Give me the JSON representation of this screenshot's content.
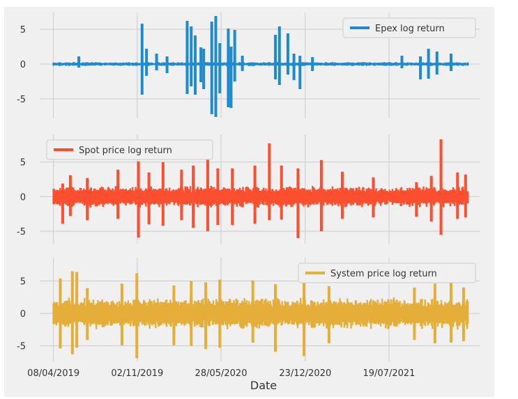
{
  "chart_data": {
    "type": "line",
    "shared_x": {
      "xlabel": "Date",
      "tick_labels": [
        "08/04/2019",
        "02/11/2019",
        "28/05/2020",
        "23/12/2020",
        "19/07/2021"
      ],
      "tick_dates": [
        "2019-04-08",
        "2019-11-02",
        "2020-05-28",
        "2020-12-23",
        "2021-07-19"
      ],
      "xlim": [
        "2019-03-05",
        "2022-03-01"
      ],
      "data_range": [
        "2019-04-08",
        "2022-01-31"
      ]
    },
    "grid": true,
    "panels": [
      {
        "series_name": "Epex log return",
        "color": "#1f8bcf",
        "legend_position": "upper right",
        "ylim": [
          -7.8,
          7.4
        ],
        "yticks": [
          -5,
          0,
          5
        ],
        "baseline_amplitude": 0.3,
        "spikes": [
          {
            "date": "2019-06-10",
            "low": -0.5,
            "high": 1.1
          },
          {
            "date": "2019-11-14",
            "low": -4.4,
            "high": 5.8
          },
          {
            "date": "2019-11-25",
            "low": -1.7,
            "high": 2.2
          },
          {
            "date": "2019-12-20",
            "low": -0.9,
            "high": 1.5
          },
          {
            "date": "2020-01-15",
            "low": -1.3,
            "high": 1.1
          },
          {
            "date": "2020-03-05",
            "low": -4.3,
            "high": 6.2
          },
          {
            "date": "2020-03-15",
            "low": -3.2,
            "high": 5.4
          },
          {
            "date": "2020-03-25",
            "low": -4.4,
            "high": 4.1
          },
          {
            "date": "2020-04-08",
            "low": -2.6,
            "high": 2.4
          },
          {
            "date": "2020-04-15",
            "low": -3.6,
            "high": 2.2
          },
          {
            "date": "2020-05-05",
            "low": -7.2,
            "high": 6.1
          },
          {
            "date": "2020-05-15",
            "low": -7.6,
            "high": 6.9
          },
          {
            "date": "2020-05-25",
            "low": -4.2,
            "high": 3.0
          },
          {
            "date": "2020-06-15",
            "low": -6.2,
            "high": 5.1
          },
          {
            "date": "2020-06-22",
            "low": -6.3,
            "high": 2.5
          },
          {
            "date": "2020-07-01",
            "low": -2.5,
            "high": 4.9
          },
          {
            "date": "2020-07-20",
            "low": -1.0,
            "high": 1.2
          },
          {
            "date": "2020-10-10",
            "low": -2.2,
            "high": 4.2
          },
          {
            "date": "2020-10-20",
            "low": -3.0,
            "high": 5.4
          },
          {
            "date": "2020-11-10",
            "low": -1.5,
            "high": 4.4
          },
          {
            "date": "2020-11-25",
            "low": -2.3,
            "high": 1.5
          },
          {
            "date": "2020-12-10",
            "low": -3.6,
            "high": 1.2
          },
          {
            "date": "2021-01-10",
            "low": -1.0,
            "high": 1.0
          },
          {
            "date": "2021-08-20",
            "low": -0.6,
            "high": 1.2
          },
          {
            "date": "2021-10-05",
            "low": -2.2,
            "high": 1.1
          },
          {
            "date": "2021-10-25",
            "low": -2.1,
            "high": 2.2
          },
          {
            "date": "2021-11-15",
            "low": -1.5,
            "high": 1.8
          },
          {
            "date": "2021-12-20",
            "low": -1.0,
            "high": 1.5
          }
        ]
      },
      {
        "series_name": "Spot price log return",
        "color": "#fc4f30",
        "legend_position": "upper left",
        "ylim": [
          -6.8,
          9.0
        ],
        "yticks": [
          -5,
          0,
          5
        ],
        "baseline_amplitude": 1.6,
        "spikes": [
          {
            "date": "2019-05-01",
            "low": -3.9,
            "high": 1.9
          },
          {
            "date": "2019-05-20",
            "low": -2.8,
            "high": 3.1
          },
          {
            "date": "2019-07-01",
            "low": -3.4,
            "high": 2.7
          },
          {
            "date": "2019-09-15",
            "low": -3.2,
            "high": 3.9
          },
          {
            "date": "2019-11-05",
            "low": -5.9,
            "high": 5.1
          },
          {
            "date": "2019-12-01",
            "low": -4.0,
            "high": 3.5
          },
          {
            "date": "2020-01-05",
            "low": -4.2,
            "high": 5.0
          },
          {
            "date": "2020-02-20",
            "low": -3.4,
            "high": 3.9
          },
          {
            "date": "2020-03-20",
            "low": -4.5,
            "high": 4.5
          },
          {
            "date": "2020-04-25",
            "low": -5.0,
            "high": 5.8
          },
          {
            "date": "2020-05-20",
            "low": -4.1,
            "high": 4.1
          },
          {
            "date": "2020-06-25",
            "low": -4.1,
            "high": 4.1
          },
          {
            "date": "2020-08-20",
            "low": -3.9,
            "high": 4.5
          },
          {
            "date": "2020-09-25",
            "low": -3.4,
            "high": 7.7
          },
          {
            "date": "2020-10-25",
            "low": -3.3,
            "high": 4.5
          },
          {
            "date": "2020-12-05",
            "low": -6.0,
            "high": 4.1
          },
          {
            "date": "2021-02-01",
            "low": -5.0,
            "high": 5.3
          },
          {
            "date": "2021-03-25",
            "low": -3.2,
            "high": 3.6
          },
          {
            "date": "2021-06-10",
            "low": -3.0,
            "high": 2.8
          },
          {
            "date": "2021-09-25",
            "low": -2.9,
            "high": 2.1
          },
          {
            "date": "2021-11-01",
            "low": -3.6,
            "high": 3.0
          },
          {
            "date": "2021-11-25",
            "low": -5.5,
            "high": 8.3
          },
          {
            "date": "2022-01-05",
            "low": -3.2,
            "high": 3.5
          },
          {
            "date": "2022-01-25",
            "low": -3.0,
            "high": 3.2
          }
        ]
      },
      {
        "series_name": "System price log return",
        "color": "#e5ae38",
        "legend_position": "upper right",
        "ylim": [
          -7.4,
          8.6
        ],
        "yticks": [
          -5,
          0,
          5
        ],
        "baseline_amplitude": 2.5,
        "spikes": [
          {
            "date": "2019-04-25",
            "low": -5.4,
            "high": 5.4
          },
          {
            "date": "2019-05-25",
            "low": -6.3,
            "high": 6.5
          },
          {
            "date": "2019-06-05",
            "low": -5.3,
            "high": 6.4
          },
          {
            "date": "2019-07-01",
            "low": -4.1,
            "high": 3.9
          },
          {
            "date": "2019-09-25",
            "low": -4.9,
            "high": 4.6
          },
          {
            "date": "2019-11-01",
            "low": -6.9,
            "high": 6.2
          },
          {
            "date": "2020-02-01",
            "low": -4.9,
            "high": 4.3
          },
          {
            "date": "2020-03-15",
            "low": -5.0,
            "high": 5.0
          },
          {
            "date": "2020-04-20",
            "low": -5.5,
            "high": 4.8
          },
          {
            "date": "2020-05-25",
            "low": -5.3,
            "high": 5.2
          },
          {
            "date": "2020-08-15",
            "low": -4.5,
            "high": 5.1
          },
          {
            "date": "2020-10-10",
            "low": -5.9,
            "high": 4.5
          },
          {
            "date": "2020-12-20",
            "low": -6.6,
            "high": 4.7
          },
          {
            "date": "2021-02-20",
            "low": -4.6,
            "high": 4.2
          },
          {
            "date": "2021-09-20",
            "low": -4.1,
            "high": 4.0
          },
          {
            "date": "2021-11-10",
            "low": -4.6,
            "high": 4.6
          },
          {
            "date": "2021-12-20",
            "low": -4.5,
            "high": 4.7
          },
          {
            "date": "2022-01-20",
            "low": -4.3,
            "high": 4.0
          }
        ]
      }
    ]
  }
}
